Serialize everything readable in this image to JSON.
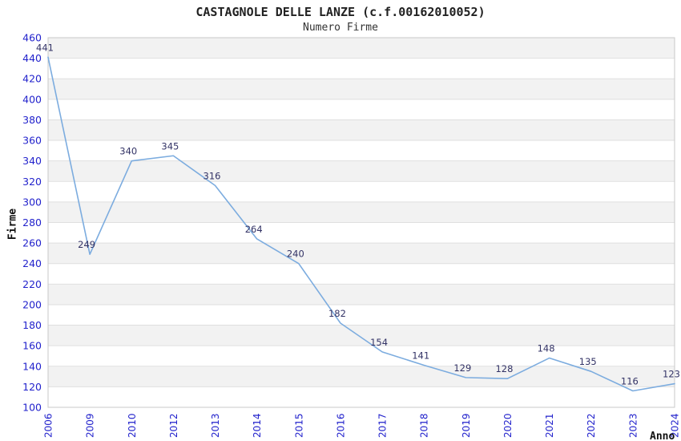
{
  "header": {
    "title": "CASTAGNOLE DELLE LANZE (c.f.00162010052)",
    "subtitle": "Numero Firme"
  },
  "chart_data": {
    "type": "line",
    "title": "CASTAGNOLE DELLE LANZE (c.f.00162010052)",
    "subtitle": "Numero Firme",
    "xlabel": "Anno",
    "ylabel": "Firme",
    "categories": [
      "2006",
      "2009",
      "2010",
      "2012",
      "2013",
      "2014",
      "2015",
      "2016",
      "2017",
      "2018",
      "2019",
      "2020",
      "2021",
      "2022",
      "2023",
      "2024"
    ],
    "values": [
      441,
      249,
      340,
      345,
      316,
      264,
      240,
      182,
      154,
      141,
      129,
      128,
      148,
      135,
      116,
      123
    ],
    "point_labels": [
      "441",
      "249",
      "340",
      "345",
      "316",
      "264",
      "240",
      "182",
      "154",
      "141",
      "129",
      "128",
      "148",
      "135",
      "116",
      "123"
    ],
    "ylim": [
      100,
      460
    ],
    "ytick_step": 20,
    "yticks": [
      100,
      120,
      140,
      160,
      180,
      200,
      220,
      240,
      260,
      280,
      300,
      320,
      340,
      360,
      380,
      400,
      420,
      440,
      460
    ],
    "grid": "horizontal-bands-alternating",
    "legend": "none",
    "colors": {
      "line": "#7CACDF",
      "tick_label": "#2222CC",
      "point_label": "#333366",
      "band_gray": "#F2F2F2",
      "band_white": "#FFFFFF",
      "grid_line": "#DFDFDF",
      "plot_border": "#C8C8C8",
      "title_text": "#222222",
      "axis_title": "#111111"
    }
  }
}
